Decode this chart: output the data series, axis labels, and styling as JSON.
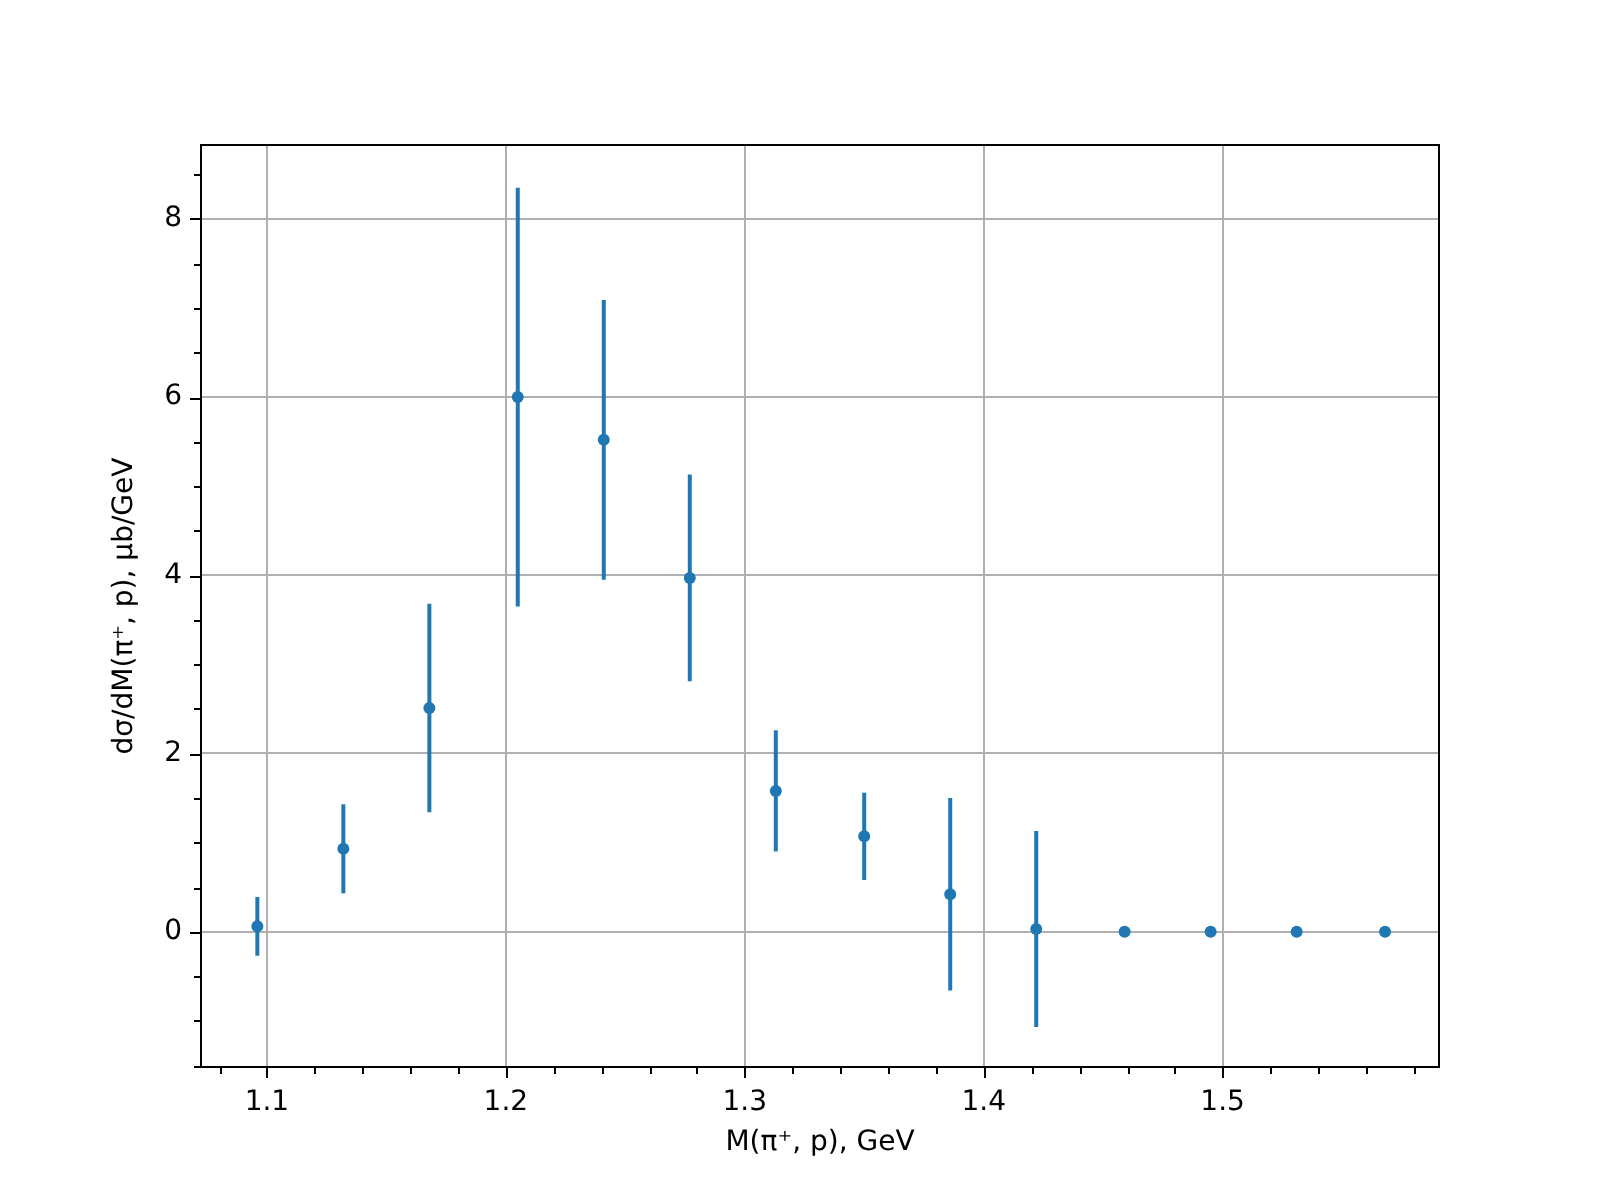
{
  "chart_data": {
    "type": "scatter",
    "xlabel": "M(π⁺, p), GeV",
    "ylabel": "dσ/dM(π⁺, p), μb/GeV",
    "x": [
      1.096,
      1.132,
      1.168,
      1.205,
      1.241,
      1.277,
      1.313,
      1.35,
      1.386,
      1.422,
      1.459,
      1.495,
      1.531,
      1.568
    ],
    "values": [
      0.06,
      0.93,
      2.51,
      6.0,
      5.52,
      3.97,
      1.58,
      1.07,
      0.42,
      0.03,
      0,
      0,
      0,
      0
    ],
    "errors": [
      0.33,
      0.5,
      1.17,
      2.35,
      1.57,
      1.16,
      0.68,
      0.49,
      1.08,
      1.1,
      null,
      null,
      null,
      null
    ],
    "color": "#1f77b4",
    "marker": "circle",
    "grid": true,
    "xlim": [
      1.072,
      1.591
    ],
    "ylim": [
      -1.53,
      8.84
    ],
    "xticks": [
      {
        "value": 1.08,
        "label": null
      },
      1.1,
      {
        "value": 1.12,
        "label": null
      },
      {
        "value": 1.14,
        "label": null
      },
      {
        "value": 1.16,
        "label": null
      },
      {
        "value": 1.18,
        "label": null
      },
      1.2,
      {
        "value": 1.22,
        "label": null
      },
      {
        "value": 1.24,
        "label": null
      },
      {
        "value": 1.26,
        "label": null
      },
      {
        "value": 1.28,
        "label": null
      },
      1.3,
      {
        "value": 1.32,
        "label": null
      },
      {
        "value": 1.34,
        "label": null
      },
      {
        "value": 1.36,
        "label": null
      },
      {
        "value": 1.38,
        "label": null
      },
      1.4,
      {
        "value": 1.42,
        "label": null
      },
      {
        "value": 1.44,
        "label": null
      },
      {
        "value": 1.46,
        "label": null
      },
      {
        "value": 1.48,
        "label": null
      },
      1.5,
      {
        "value": 1.52,
        "label": null
      },
      {
        "value": 1.54,
        "label": null
      },
      {
        "value": 1.56,
        "label": null
      },
      {
        "value": 1.58,
        "label": null
      }
    ],
    "yticks": [
      {
        "value": -1.5,
        "label": null
      },
      {
        "value": -1,
        "label": null
      },
      {
        "value": -0.5,
        "label": null
      },
      0,
      {
        "value": 0.5,
        "label": null
      },
      {
        "value": 1,
        "label": null
      },
      {
        "value": 1.5,
        "label": null
      },
      2,
      {
        "value": 2.5,
        "label": null
      },
      {
        "value": 3,
        "label": null
      },
      {
        "value": 3.5,
        "label": null
      },
      4,
      {
        "value": 4.5,
        "label": null
      },
      {
        "value": 5,
        "label": null
      },
      {
        "value": 5.5,
        "label": null
      },
      6,
      {
        "value": 6.5,
        "label": null
      },
      {
        "value": 7,
        "label": null
      },
      {
        "value": 7.5,
        "label": null
      },
      8,
      {
        "value": 8.5,
        "label": null
      }
    ]
  }
}
